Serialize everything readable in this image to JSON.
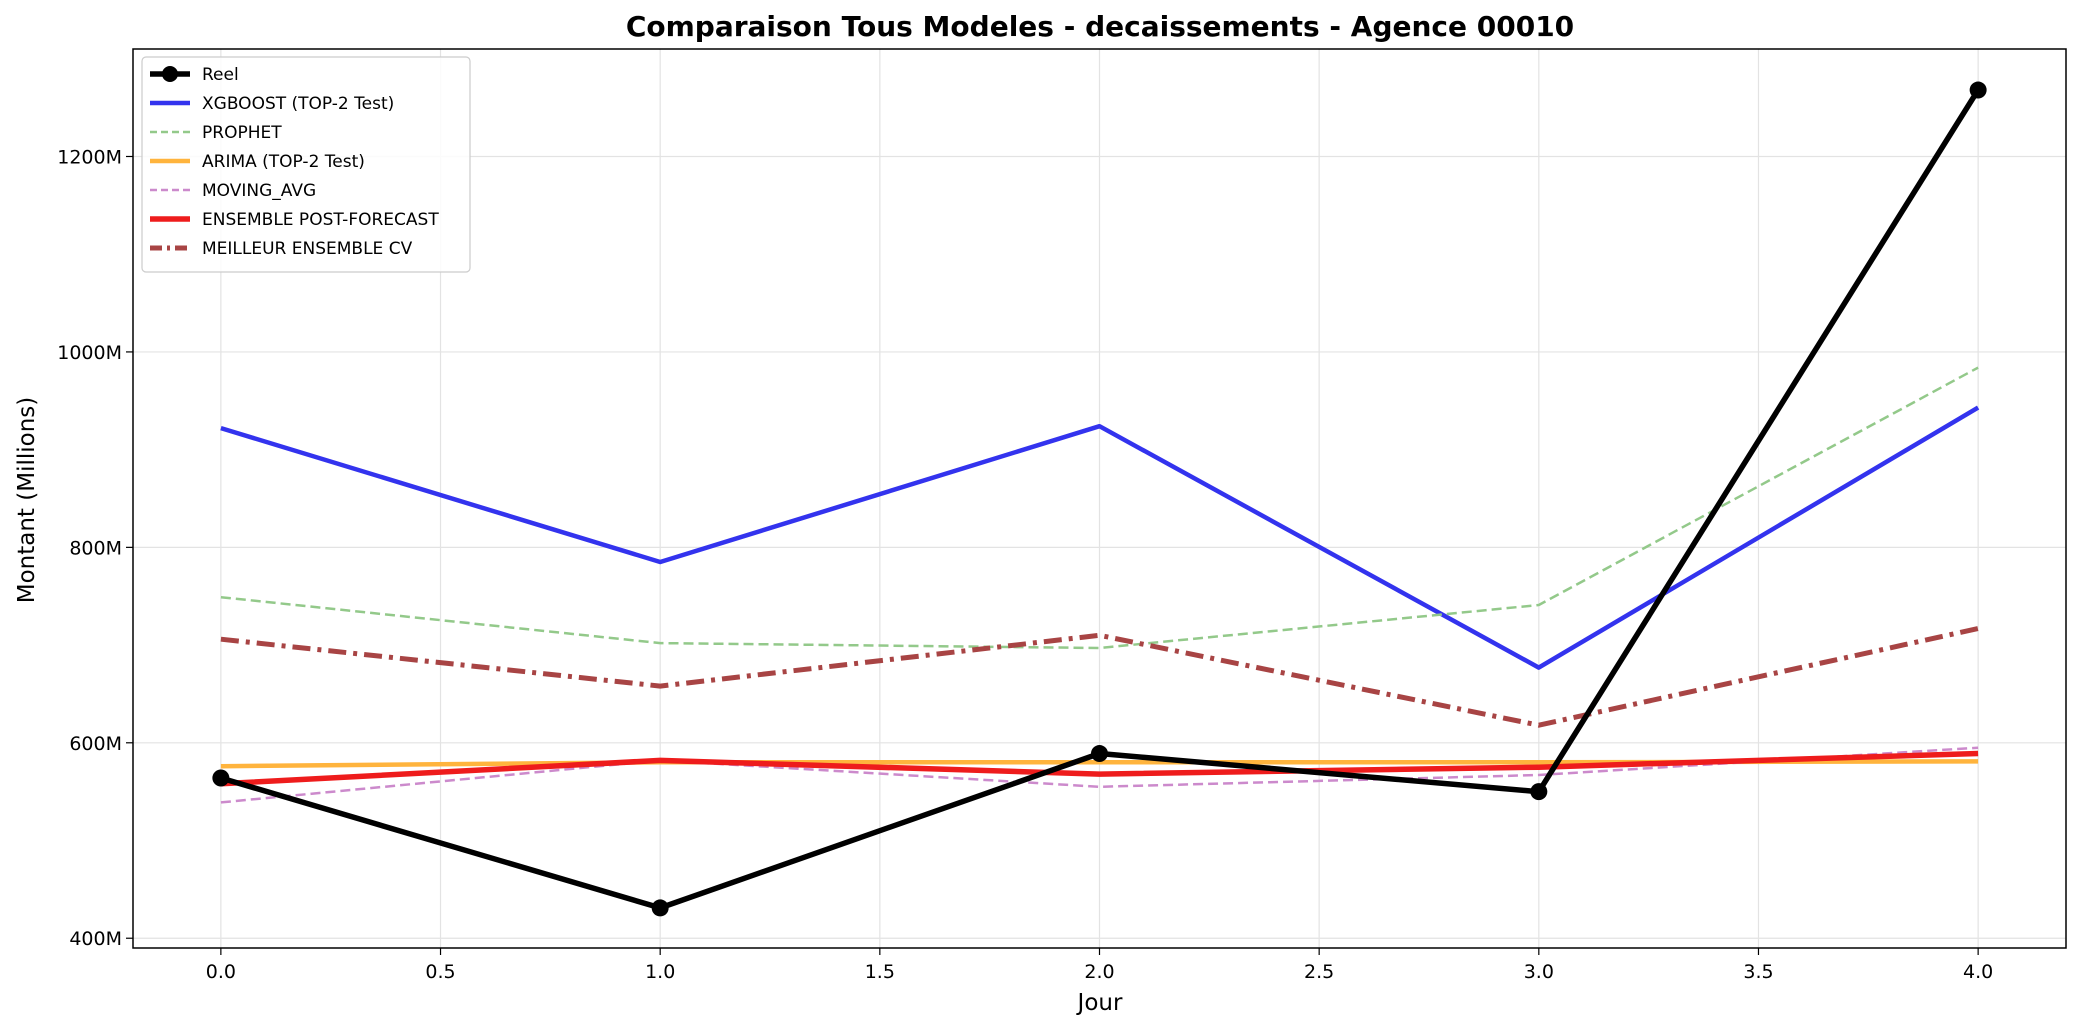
{
  "chart_data": {
    "type": "line",
    "title": "Comparaison Tous Modeles - decaissements - Agence 00010",
    "xlabel": "Jour",
    "ylabel": "Montant (Millions)",
    "x": [
      0.0,
      1.0,
      2.0,
      3.0,
      4.0
    ],
    "xlim": [
      -0.2,
      4.2
    ],
    "ylim": [
      390,
      1310
    ],
    "x_ticks": [
      0.0,
      0.5,
      1.0,
      1.5,
      2.0,
      2.5,
      3.0,
      3.5,
      4.0
    ],
    "x_tick_labels": [
      "0.0",
      "0.5",
      "1.0",
      "1.5",
      "2.0",
      "2.5",
      "3.0",
      "3.5",
      "4.0"
    ],
    "y_ticks": [
      400,
      600,
      800,
      1000,
      1200
    ],
    "y_tick_labels": [
      "400M",
      "600M",
      "800M",
      "1000M",
      "1200M"
    ],
    "grid": true,
    "legend_position": "top-left",
    "series": [
      {
        "name": "XGBOOST (TOP-2 Test)",
        "color": "#3333ee",
        "style": "solid",
        "width": 4.5,
        "values": [
          922,
          785,
          924,
          677,
          943
        ]
      },
      {
        "name": "PROPHET",
        "color": "#93c98a",
        "style": "dashed",
        "width": 2.5,
        "values": [
          749,
          702,
          697,
          741,
          984
        ]
      },
      {
        "name": "ARIMA (TOP-2 Test)",
        "color": "#ffb43d",
        "style": "solid",
        "width": 4.5,
        "values": [
          576,
          580,
          580,
          580,
          581
        ]
      },
      {
        "name": "MOVING_AVG",
        "color": "#cc8acc",
        "style": "dashed",
        "width": 2.5,
        "values": [
          539,
          582,
          555,
          567,
          595
        ]
      },
      {
        "name": "ENSEMBLE POST-FORECAST",
        "color": "#ee1c1c",
        "style": "solid",
        "width": 5.5,
        "values": [
          558,
          582,
          568,
          575,
          589
        ]
      },
      {
        "name": "MEILLEUR ENSEMBLE CV",
        "color": "#a84444",
        "style": "dashdot",
        "width": 5,
        "values": [
          706,
          658,
          710,
          618,
          717
        ]
      },
      {
        "name": "Reel",
        "color": "#000000",
        "style": "solid-markers",
        "width": 5.5,
        "values": [
          564,
          431,
          589,
          550,
          1268
        ]
      }
    ]
  }
}
